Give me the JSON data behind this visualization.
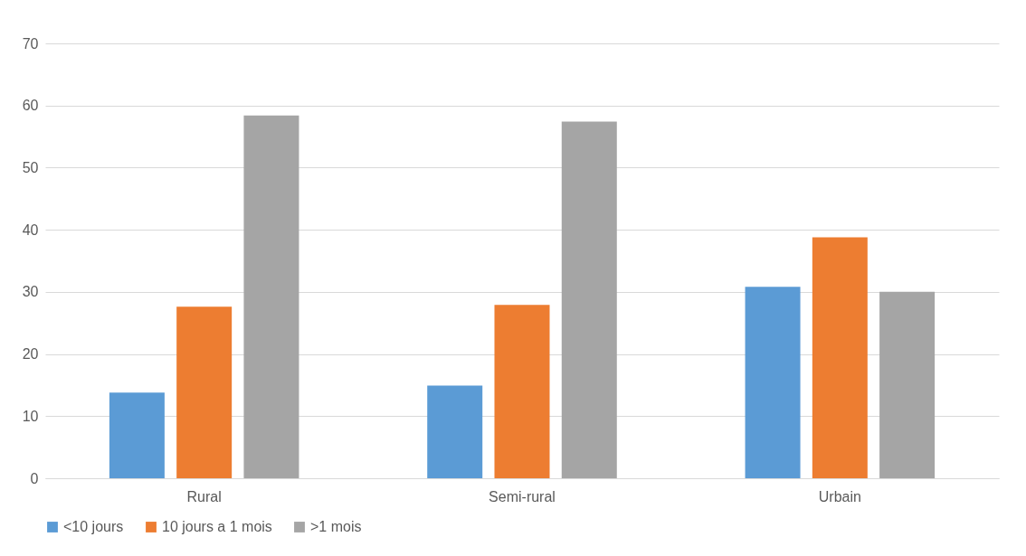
{
  "chart_data": {
    "type": "bar",
    "categories": [
      "Rural",
      "Semi-rural",
      "Urbain"
    ],
    "series": [
      {
        "name": "<10 jours",
        "color": "#5b9bd5",
        "values": [
          13.8,
          14.9,
          30.8
        ]
      },
      {
        "name": "10 jours a 1 mois",
        "color": "#ed7d31",
        "values": [
          27.6,
          27.9,
          38.8
        ]
      },
      {
        "name": ">1 mois",
        "color": "#a5a5a5",
        "values": [
          58.4,
          57.4,
          30.0
        ]
      }
    ],
    "ylim": [
      0,
      70
    ],
    "yticks": [
      0,
      10,
      20,
      30,
      40,
      50,
      60,
      70
    ],
    "grid": "y",
    "legend": "bottom"
  }
}
